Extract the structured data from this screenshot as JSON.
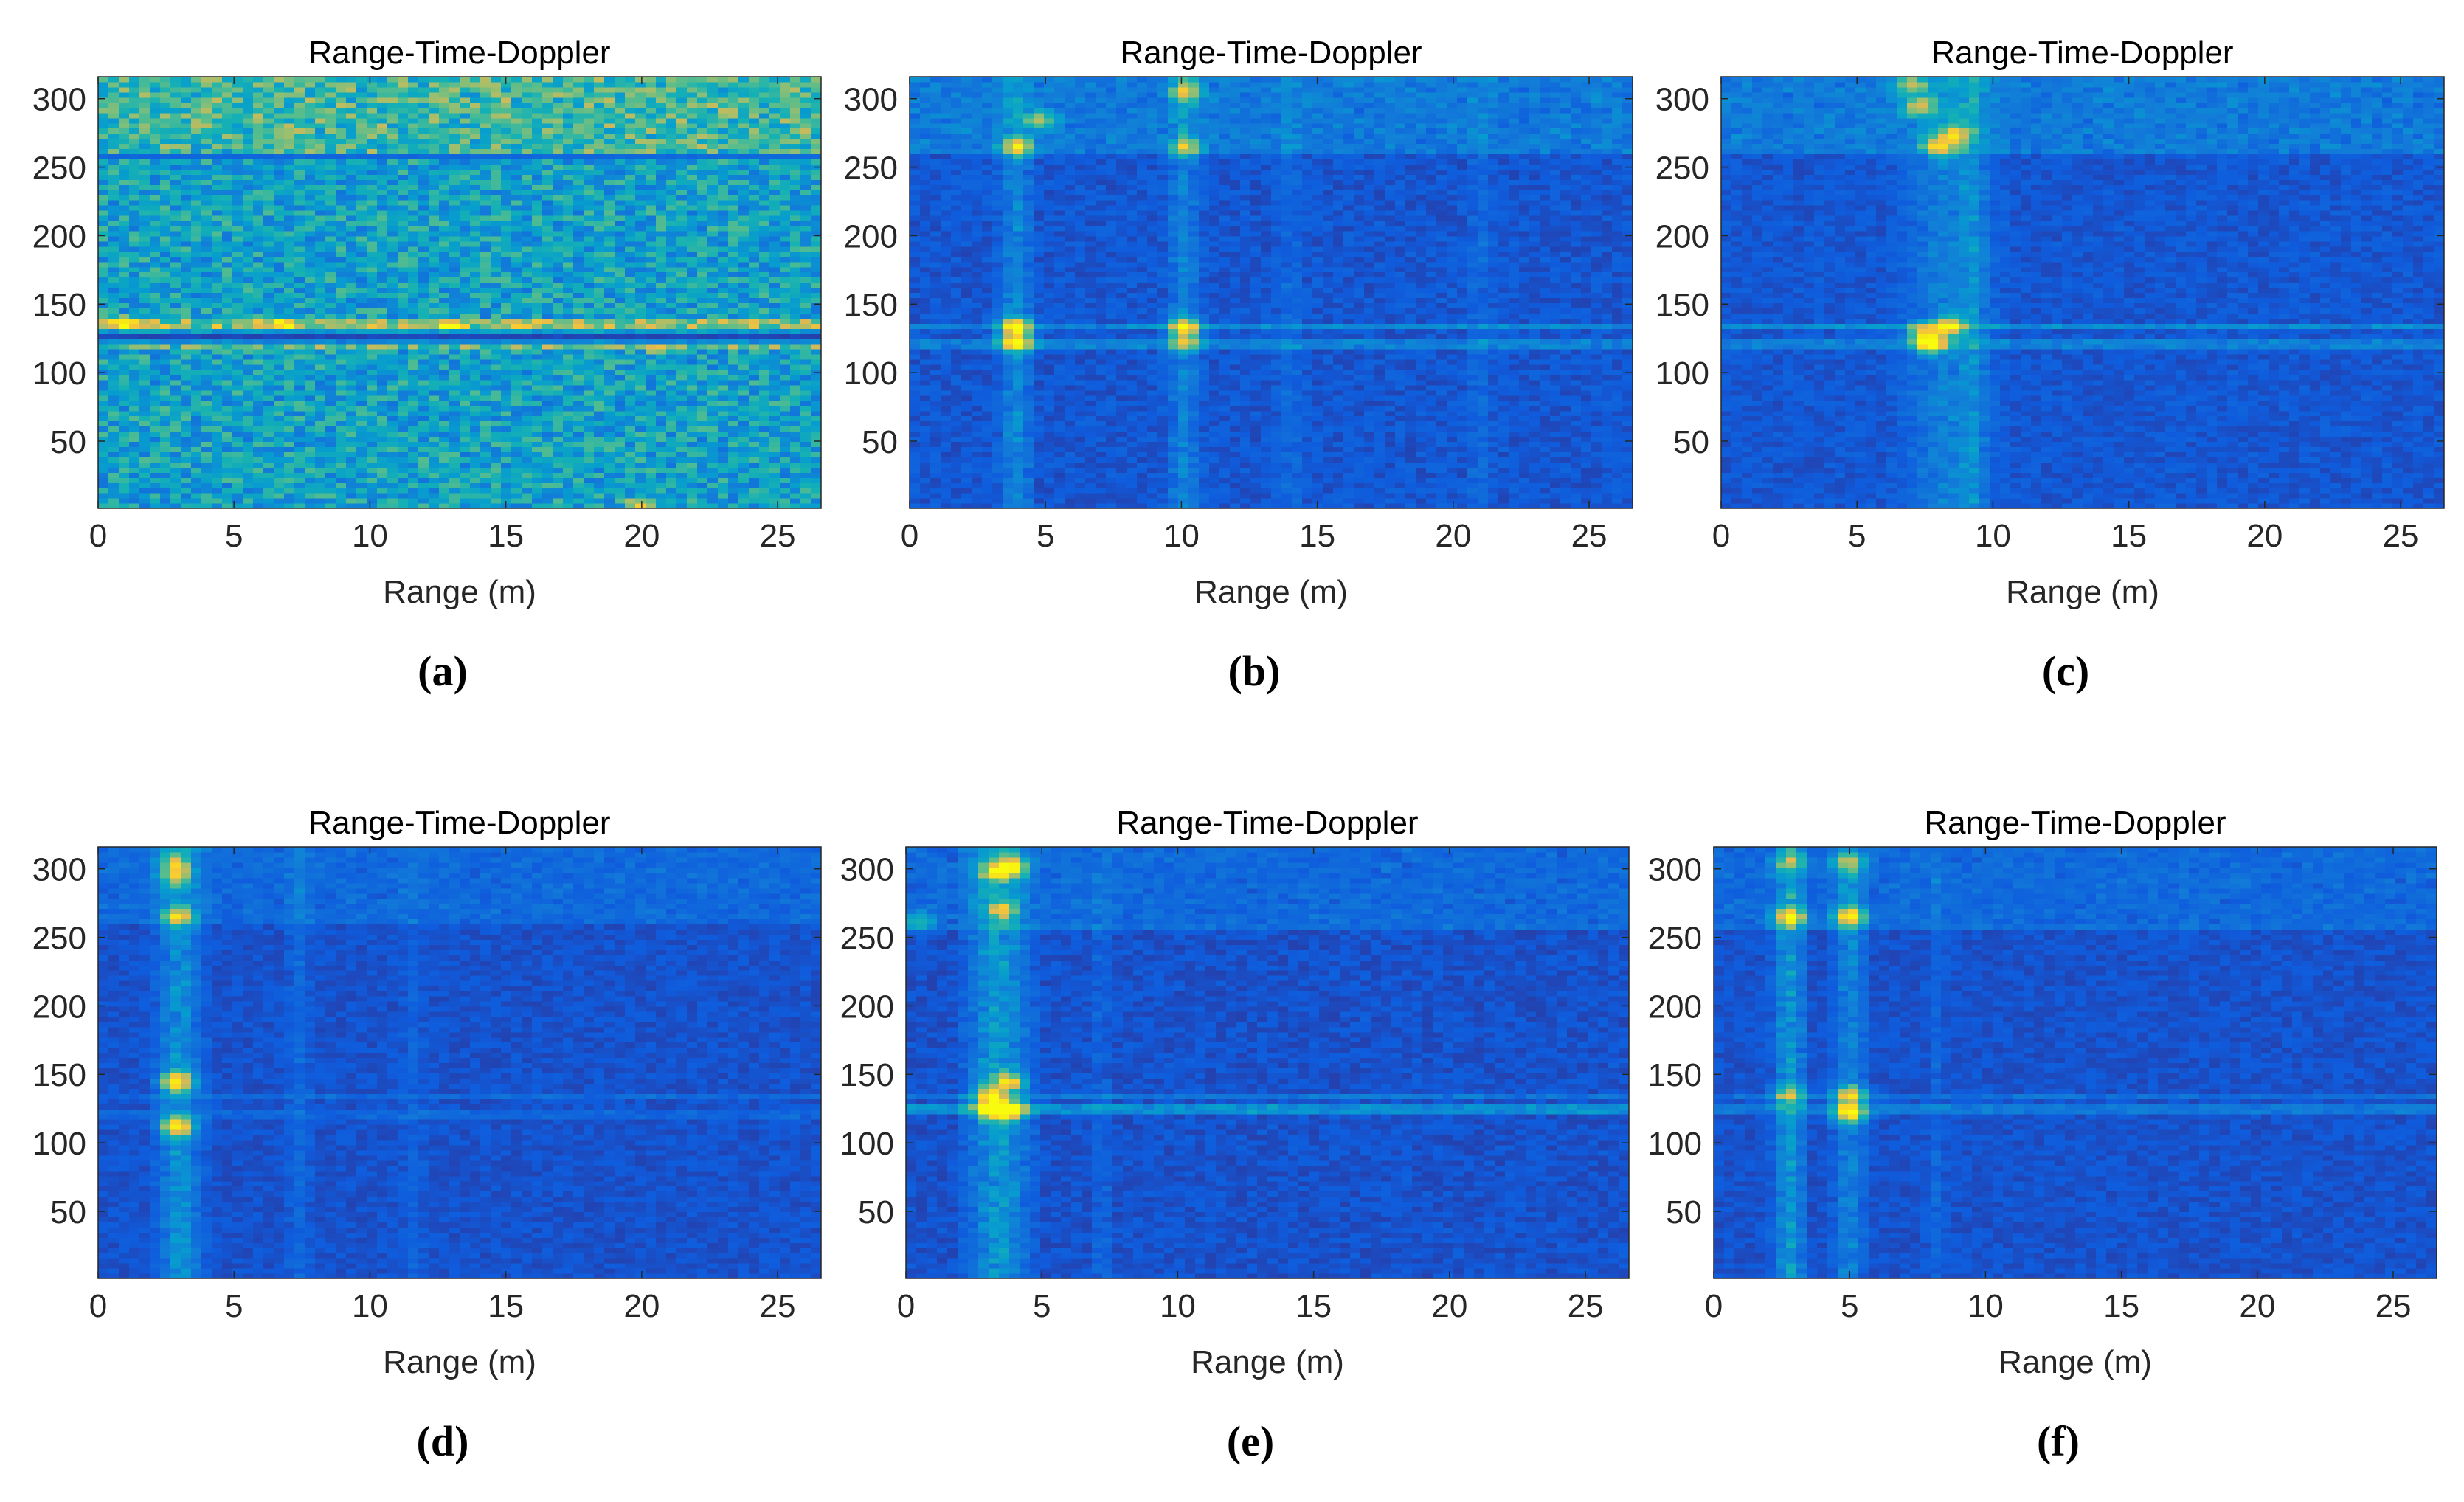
{
  "chart_data": [
    {
      "type": "heatmap",
      "panel_label": "(a)",
      "title": "Range-Time-Doppler",
      "xlabel": "Range (m)",
      "ylabel": "",
      "xlim": [
        0,
        26.6
      ],
      "ylim": [
        1,
        316
      ],
      "xticks": [
        0,
        5,
        10,
        15,
        20,
        25
      ],
      "yticks": [
        50,
        100,
        150,
        200,
        250,
        300
      ],
      "colormap": "parula",
      "color_range": [
        0,
        1
      ],
      "noise_floor": 0.33,
      "noise_spread": 0.32,
      "vertical_features": [],
      "horizontal_features": [
        {
          "y": 128,
          "half_width": 4,
          "value": 0.04,
          "mode": "set"
        },
        {
          "y": 134,
          "half_width": 2,
          "value": 0.25,
          "mode": "add"
        },
        {
          "y": 122,
          "half_width": 2,
          "value": 0.18,
          "mode": "add"
        },
        {
          "y": 258,
          "half_width": 1,
          "value": 0.12,
          "mode": "set"
        }
      ],
      "band_boost": [
        {
          "y_from": 258,
          "y_to": 316,
          "value": 0.12
        }
      ],
      "hot_spots": [
        {
          "x": 1.0,
          "y": 134,
          "value": 0.35
        },
        {
          "x": 6.8,
          "y": 134,
          "value": 0.35
        },
        {
          "x": 13.0,
          "y": 134,
          "value": 0.35
        },
        {
          "x": 20.6,
          "y": 121,
          "value": 0.4
        },
        {
          "x": 20.0,
          "y": 2,
          "value": 0.35
        }
      ]
    },
    {
      "type": "heatmap",
      "panel_label": "(b)",
      "title": "Range-Time-Doppler",
      "xlabel": "Range (m)",
      "ylabel": "",
      "xlim": [
        0,
        26.6
      ],
      "ylim": [
        1,
        316
      ],
      "xticks": [
        0,
        5,
        10,
        15,
        20,
        25
      ],
      "yticks": [
        50,
        100,
        150,
        200,
        250,
        300
      ],
      "colormap": "parula",
      "color_range": [
        0,
        1
      ],
      "noise_floor": 0.09,
      "noise_spread": 0.08,
      "vertical_features": [
        {
          "x": 3.9,
          "half_width": 0.5,
          "value": 0.14
        },
        {
          "x": 10.1,
          "half_width": 0.5,
          "value": 0.12
        },
        {
          "x": 14.0,
          "half_width": 0.4,
          "value": 0.05
        },
        {
          "x": 21.0,
          "half_width": 0.4,
          "value": 0.05
        }
      ],
      "horizontal_features": [
        {
          "y": 134,
          "half_width": 1,
          "value": 0.14,
          "mode": "add"
        },
        {
          "y": 122,
          "half_width": 1,
          "value": 0.12,
          "mode": "add"
        }
      ],
      "band_boost": [
        {
          "y_from": 258,
          "y_to": 316,
          "value": 0.1
        }
      ],
      "hot_spots": [
        {
          "x": 3.9,
          "y": 134,
          "value": 0.75
        },
        {
          "x": 3.9,
          "y": 122,
          "value": 0.7
        },
        {
          "x": 10.1,
          "y": 134,
          "value": 0.7
        },
        {
          "x": 10.1,
          "y": 122,
          "value": 0.45
        },
        {
          "x": 4.8,
          "y": 285,
          "value": 0.45
        },
        {
          "x": 4.0,
          "y": 265,
          "value": 0.55
        },
        {
          "x": 10.2,
          "y": 305,
          "value": 0.5
        },
        {
          "x": 10.2,
          "y": 265,
          "value": 0.45
        }
      ]
    },
    {
      "type": "heatmap",
      "panel_label": "(c)",
      "title": "Range-Time-Doppler",
      "xlabel": "Range (m)",
      "ylabel": "",
      "xlim": [
        0,
        26.6
      ],
      "ylim": [
        1,
        316
      ],
      "xticks": [
        0,
        5,
        10,
        15,
        20,
        25
      ],
      "yticks": [
        50,
        100,
        150,
        200,
        250,
        300
      ],
      "colormap": "parula",
      "color_range": [
        0,
        1
      ],
      "noise_floor": 0.09,
      "noise_spread": 0.07,
      "vertical_features": [
        {
          "x": 8.4,
          "half_width": 1.4,
          "value": 0.12
        },
        {
          "x": 9.3,
          "half_width": 0.4,
          "value": 0.1
        }
      ],
      "horizontal_features": [
        {
          "y": 134,
          "half_width": 1,
          "value": 0.16,
          "mode": "add"
        },
        {
          "y": 122,
          "half_width": 1,
          "value": 0.12,
          "mode": "add"
        }
      ],
      "band_boost": [
        {
          "y_from": 258,
          "y_to": 316,
          "value": 0.1
        }
      ],
      "hot_spots": [
        {
          "x": 7.7,
          "y": 122,
          "value": 0.85
        },
        {
          "x": 8.4,
          "y": 134,
          "value": 0.7
        },
        {
          "x": 7.4,
          "y": 130,
          "value": 0.45
        },
        {
          "x": 8.0,
          "y": 265,
          "value": 0.55
        },
        {
          "x": 8.6,
          "y": 274,
          "value": 0.55
        },
        {
          "x": 7.3,
          "y": 295,
          "value": 0.45
        },
        {
          "x": 7.0,
          "y": 310,
          "value": 0.4
        }
      ]
    },
    {
      "type": "heatmap",
      "panel_label": "(d)",
      "title": "Range-Time-Doppler",
      "xlabel": "Range (m)",
      "ylabel": "",
      "xlim": [
        0,
        26.6
      ],
      "ylim": [
        1,
        316
      ],
      "xticks": [
        0,
        5,
        10,
        15,
        20,
        25
      ],
      "yticks": [
        50,
        100,
        150,
        200,
        250,
        300
      ],
      "colormap": "parula",
      "color_range": [
        0,
        1
      ],
      "noise_floor": 0.08,
      "noise_spread": 0.06,
      "vertical_features": [
        {
          "x": 3.0,
          "half_width": 0.7,
          "value": 0.18
        },
        {
          "x": 7.4,
          "half_width": 0.4,
          "value": 0.05
        },
        {
          "x": 11.6,
          "half_width": 0.4,
          "value": 0.04
        }
      ],
      "horizontal_features": [
        {
          "y": 134,
          "half_width": 1,
          "value": 0.06,
          "mode": "add"
        },
        {
          "y": 122,
          "half_width": 1,
          "value": 0.05,
          "mode": "add"
        }
      ],
      "band_boost": [
        {
          "y_from": 258,
          "y_to": 316,
          "value": 0.06
        }
      ],
      "hot_spots": [
        {
          "x": 2.9,
          "y": 145,
          "value": 0.7
        },
        {
          "x": 2.9,
          "y": 112,
          "value": 0.72
        },
        {
          "x": 2.9,
          "y": 265,
          "value": 0.55
        },
        {
          "x": 2.9,
          "y": 295,
          "value": 0.45
        },
        {
          "x": 2.8,
          "y": 305,
          "value": 0.35
        }
      ]
    },
    {
      "type": "heatmap",
      "panel_label": "(e)",
      "title": "Range-Time-Doppler",
      "xlabel": "Range (m)",
      "ylabel": "",
      "xlim": [
        0,
        26.6
      ],
      "ylim": [
        1,
        316
      ],
      "xticks": [
        0,
        5,
        10,
        15,
        20,
        25
      ],
      "yticks": [
        50,
        100,
        150,
        200,
        250,
        300
      ],
      "colormap": "parula",
      "color_range": [
        0,
        1
      ],
      "noise_floor": 0.08,
      "noise_spread": 0.07,
      "vertical_features": [
        {
          "x": 3.4,
          "half_width": 1.0,
          "value": 0.2
        },
        {
          "x": 7.2,
          "half_width": 0.3,
          "value": 0.05
        }
      ],
      "horizontal_features": [
        {
          "y": 134,
          "half_width": 1,
          "value": 0.1,
          "mode": "add"
        },
        {
          "y": 124,
          "half_width": 1,
          "value": 0.18,
          "mode": "add"
        },
        {
          "y": 258,
          "half_width": 1,
          "value": 0.08,
          "mode": "add"
        }
      ],
      "band_boost": [
        {
          "y_from": 258,
          "y_to": 316,
          "value": 0.06
        }
      ],
      "hot_spots": [
        {
          "x": 3.2,
          "y": 124,
          "value": 0.82
        },
        {
          "x": 3.8,
          "y": 124,
          "value": 0.75
        },
        {
          "x": 3.8,
          "y": 145,
          "value": 0.6
        },
        {
          "x": 3.1,
          "y": 135,
          "value": 0.55
        },
        {
          "x": 3.9,
          "y": 302,
          "value": 0.7
        },
        {
          "x": 3.3,
          "y": 298,
          "value": 0.5
        },
        {
          "x": 3.5,
          "y": 270,
          "value": 0.45
        },
        {
          "x": 0.5,
          "y": 262,
          "value": 0.3
        }
      ]
    },
    {
      "type": "heatmap",
      "panel_label": "(f)",
      "title": "Range-Time-Doppler",
      "xlabel": "Range (m)",
      "ylabel": "",
      "xlim": [
        0,
        26.6
      ],
      "ylim": [
        1,
        316
      ],
      "xticks": [
        0,
        5,
        10,
        15,
        20,
        25
      ],
      "yticks": [
        50,
        100,
        150,
        200,
        250,
        300
      ],
      "colormap": "parula",
      "color_range": [
        0,
        1
      ],
      "noise_floor": 0.08,
      "noise_spread": 0.06,
      "vertical_features": [
        {
          "x": 2.8,
          "half_width": 0.5,
          "value": 0.2
        },
        {
          "x": 5.0,
          "half_width": 0.5,
          "value": 0.14
        },
        {
          "x": 8.2,
          "half_width": 0.3,
          "value": 0.05
        }
      ],
      "horizontal_features": [
        {
          "y": 134,
          "half_width": 1,
          "value": 0.08,
          "mode": "add"
        },
        {
          "y": 124,
          "half_width": 1,
          "value": 0.1,
          "mode": "add"
        },
        {
          "y": 258,
          "half_width": 1,
          "value": 0.08,
          "mode": "add"
        }
      ],
      "band_boost": [
        {
          "y_from": 258,
          "y_to": 316,
          "value": 0.06
        }
      ],
      "hot_spots": [
        {
          "x": 2.8,
          "y": 265,
          "value": 0.7
        },
        {
          "x": 5.0,
          "y": 265,
          "value": 0.7
        },
        {
          "x": 5.0,
          "y": 135,
          "value": 0.62
        },
        {
          "x": 5.0,
          "y": 122,
          "value": 0.75
        },
        {
          "x": 2.8,
          "y": 135,
          "value": 0.4
        },
        {
          "x": 5.0,
          "y": 305,
          "value": 0.4
        },
        {
          "x": 2.8,
          "y": 305,
          "value": 0.35
        }
      ]
    }
  ]
}
